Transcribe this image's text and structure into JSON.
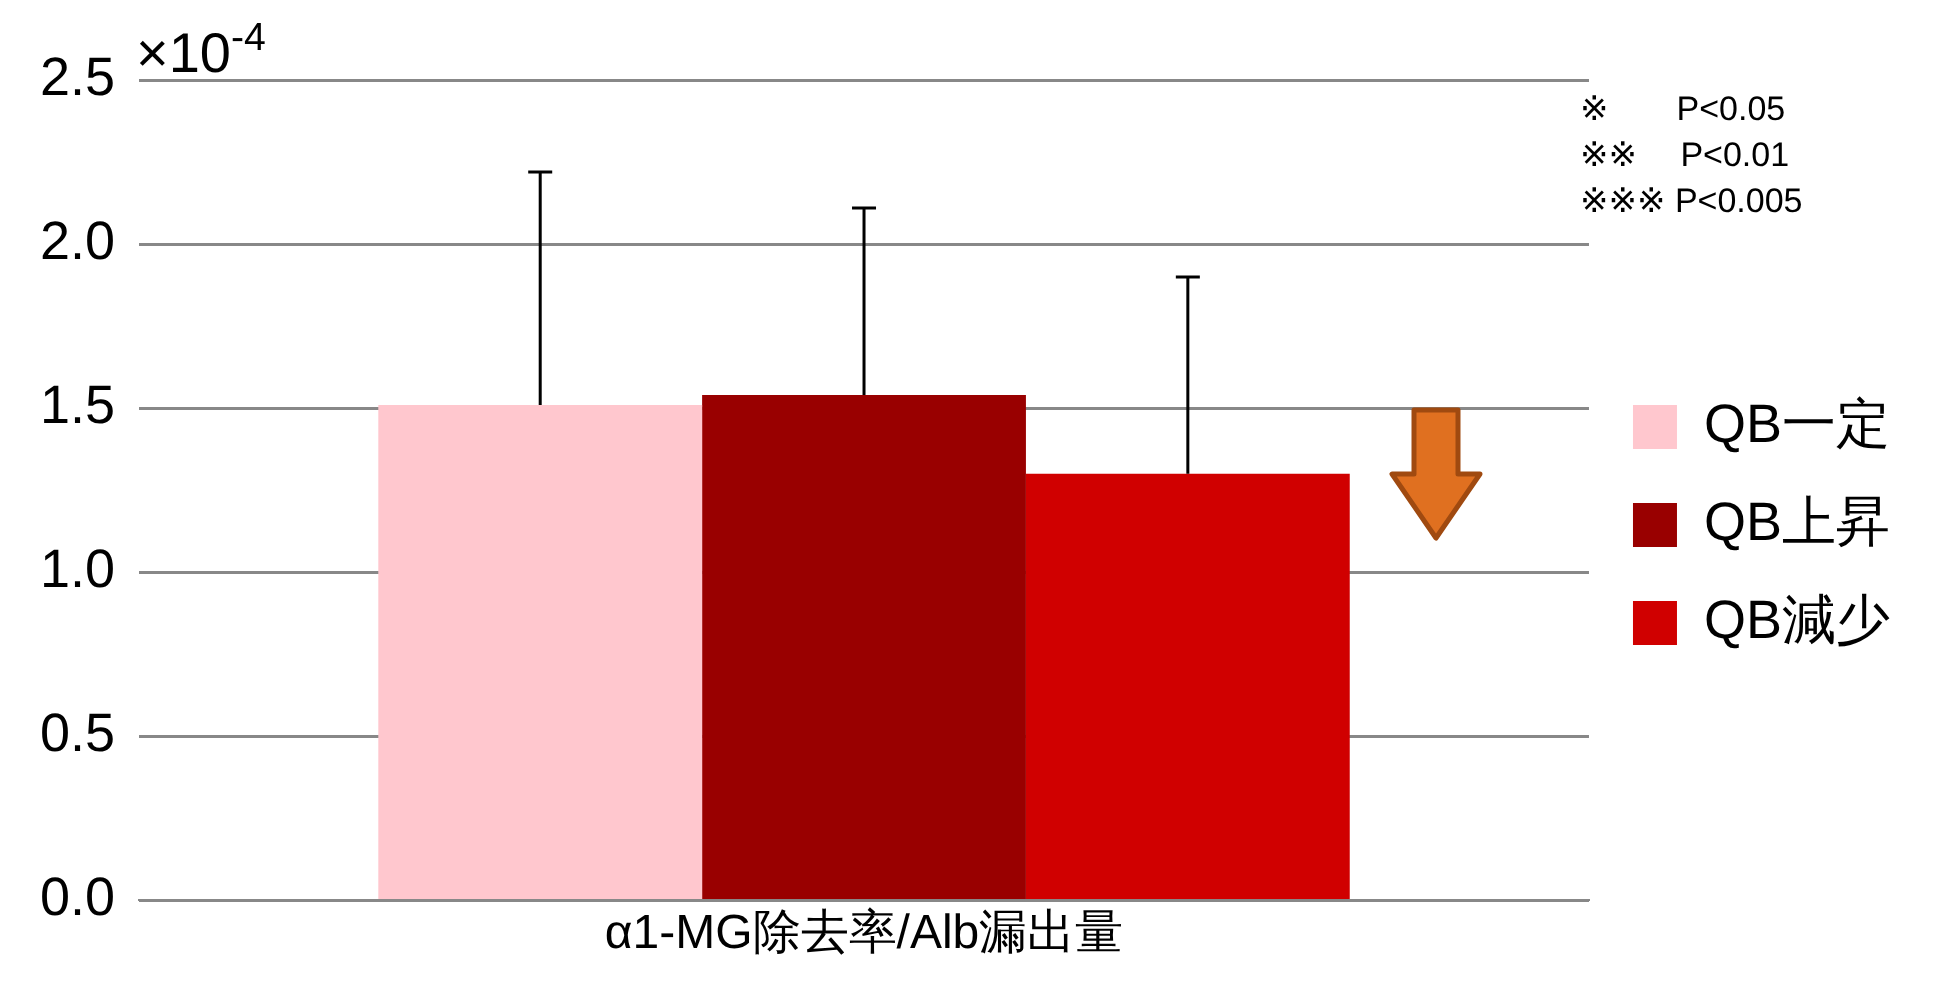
{
  "chart_data": {
    "type": "bar",
    "categories": [
      "α1-MG除去率/Alb漏出量"
    ],
    "series": [
      {
        "name": "QB一定",
        "color": "#ffc7ce",
        "values": [
          1.51
        ],
        "errors": [
          [
            1.51,
            2.22
          ]
        ]
      },
      {
        "name": "QB上昇",
        "color": "#990000",
        "values": [
          1.54
        ],
        "errors": [
          [
            1.54,
            2.11
          ]
        ]
      },
      {
        "name": "QB減少",
        "color": "#d00000",
        "values": [
          1.3
        ],
        "errors": [
          [
            1.3,
            1.9
          ]
        ]
      }
    ],
    "ylim": [
      0,
      2.5
    ],
    "yticks": [
      {
        "value": 0,
        "label": "0.0"
      },
      {
        "value": 0.5,
        "label": "0.5"
      },
      {
        "value": 1,
        "label": "1.0"
      },
      {
        "value": 1.5,
        "label": "1.5"
      },
      {
        "value": 2,
        "label": "2.0"
      },
      {
        "value": 2.5,
        "label": "2.5"
      }
    ],
    "grid": "y",
    "legend": "right",
    "annotations": [
      "×10$^{-4}$",
      "※　　P<0.05",
      "※※　 P<0.01",
      "※※※ P<0.005"
    ]
  }
}
